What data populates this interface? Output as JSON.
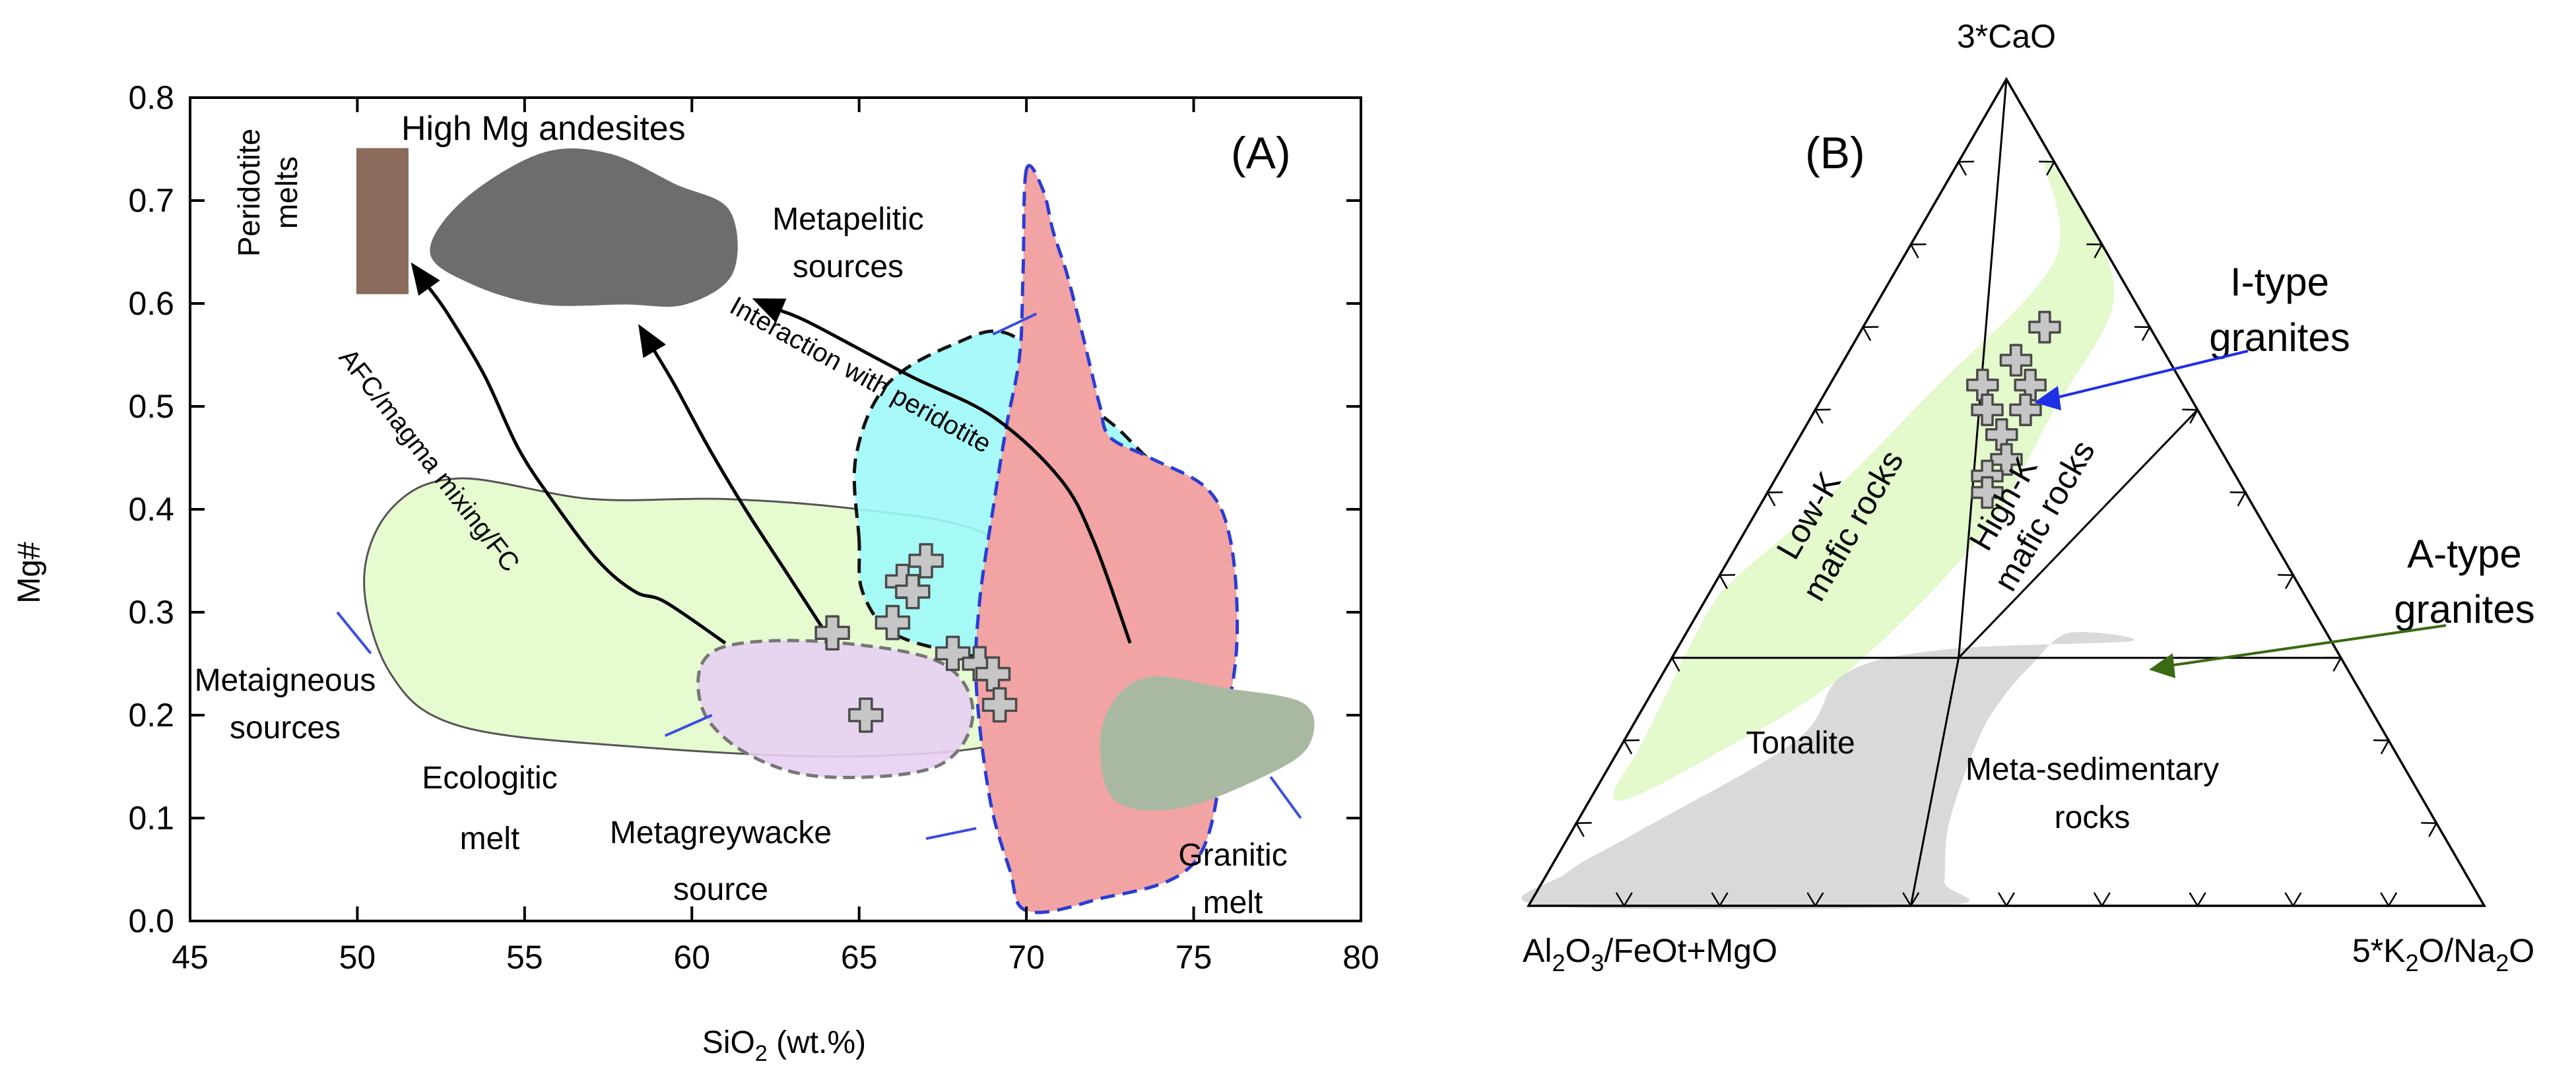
{
  "chart_data": [
    {
      "type": "scatter",
      "panel_label": "(A)",
      "xlabel": "SiO2 (wt.%)",
      "xlabel_parts": {
        "main": "SiO",
        "sub": "2",
        "rest": " (wt.%)"
      },
      "ylabel": "Mg#",
      "xlim": [
        45,
        80
      ],
      "ylim": [
        0.0,
        0.8
      ],
      "x_ticks": [
        "45",
        "50",
        "55",
        "60",
        "65",
        "70",
        "75",
        "80"
      ],
      "y_ticks": [
        "0.0",
        "0.1",
        "0.2",
        "0.3",
        "0.4",
        "0.5",
        "0.6",
        "0.7",
        "0.8"
      ],
      "samples": [
        {
          "x": 64.2,
          "y": 0.28
        },
        {
          "x": 65.2,
          "y": 0.2
        },
        {
          "x": 66.0,
          "y": 0.29
        },
        {
          "x": 66.3,
          "y": 0.33
        },
        {
          "x": 66.6,
          "y": 0.32
        },
        {
          "x": 67.0,
          "y": 0.35
        },
        {
          "x": 67.8,
          "y": 0.26
        },
        {
          "x": 68.6,
          "y": 0.25
        },
        {
          "x": 69.0,
          "y": 0.24
        },
        {
          "x": 69.2,
          "y": 0.21
        }
      ],
      "fields": [
        {
          "name": "metaigneous",
          "fill": "#e6fbd0",
          "stroke": "#555555",
          "dash": "none",
          "points": [
            [
              50.2,
              0.33
            ],
            [
              51.0,
              0.4
            ],
            [
              53.0,
              0.43
            ],
            [
              57.0,
              0.41
            ],
            [
              61.0,
              0.41
            ],
            [
              65.0,
              0.4
            ],
            [
              68.5,
              0.38
            ],
            [
              70.5,
              0.33
            ],
            [
              71.5,
              0.25
            ],
            [
              70.0,
              0.18
            ],
            [
              65.0,
              0.16
            ],
            [
              58.0,
              0.17
            ],
            [
              53.0,
              0.19
            ],
            [
              51.0,
              0.24
            ]
          ]
        },
        {
          "name": "metapelitic",
          "fill": "#9ff9fa",
          "stroke": "#111111",
          "dash": "22,12",
          "points": [
            [
              65.0,
              0.37
            ],
            [
              64.9,
              0.45
            ],
            [
              65.8,
              0.52
            ],
            [
              67.8,
              0.56
            ],
            [
              69.5,
              0.57
            ],
            [
              71.5,
              0.51
            ],
            [
              73.0,
              0.47
            ],
            [
              74.4,
              0.41
            ],
            [
              74.1,
              0.33
            ],
            [
              72.5,
              0.26
            ],
            [
              71.0,
              0.24
            ],
            [
              70.0,
              0.25
            ],
            [
              68.0,
              0.26
            ],
            [
              66.0,
              0.28
            ],
            [
              65.1,
              0.32
            ]
          ]
        },
        {
          "name": "metagreywacke",
          "fill": "#e7d0f2",
          "stroke": "#777777",
          "dash": "18,10",
          "points": [
            [
              60.3,
              0.25
            ],
            [
              61.5,
              0.27
            ],
            [
              64.5,
              0.27
            ],
            [
              67.5,
              0.25
            ],
            [
              68.4,
              0.2
            ],
            [
              67.3,
              0.15
            ],
            [
              64.0,
              0.14
            ],
            [
              61.8,
              0.16
            ],
            [
              60.4,
              0.2
            ]
          ]
        },
        {
          "name": "granitic-source",
          "fill": "#f2a3a3",
          "stroke": "#2a3cd6",
          "dash": "22,12",
          "points": [
            [
              70.0,
              0.73
            ],
            [
              70.5,
              0.71
            ],
            [
              70.8,
              0.67
            ],
            [
              71.2,
              0.63
            ],
            [
              71.6,
              0.58
            ],
            [
              71.9,
              0.54
            ],
            [
              72.2,
              0.5
            ],
            [
              72.5,
              0.47
            ],
            [
              73.7,
              0.45
            ],
            [
              75.4,
              0.42
            ],
            [
              76.1,
              0.37
            ],
            [
              76.3,
              0.28
            ],
            [
              76.0,
              0.2
            ],
            [
              75.1,
              0.06
            ],
            [
              72.0,
              0.02
            ],
            [
              70.0,
              0.01
            ],
            [
              69.5,
              0.05
            ],
            [
              68.9,
              0.12
            ],
            [
              68.5,
              0.23
            ],
            [
              68.6,
              0.31
            ],
            [
              69.0,
              0.4
            ],
            [
              69.4,
              0.48
            ],
            [
              69.8,
              0.55
            ],
            [
              69.9,
              0.63
            ]
          ]
        },
        {
          "name": "granitic-melt",
          "fill": "#a9b9a1",
          "stroke": "#a9b9a1",
          "dash": "none",
          "points": [
            [
              72.3,
              0.19
            ],
            [
              73.5,
              0.235
            ],
            [
              76.0,
              0.225
            ],
            [
              78.3,
              0.21
            ],
            [
              78.4,
              0.17
            ],
            [
              77.0,
              0.14
            ],
            [
              74.5,
              0.11
            ],
            [
              72.6,
              0.12
            ]
          ]
        },
        {
          "name": "high-mg-andesites",
          "fill": "#6d6d6d",
          "stroke": "#6d6d6d",
          "dash": "none",
          "points": [
            [
              52.2,
              0.65
            ],
            [
              53.2,
              0.7
            ],
            [
              55.5,
              0.745
            ],
            [
              57.5,
              0.745
            ],
            [
              59.5,
              0.715
            ],
            [
              61.1,
              0.69
            ],
            [
              61.2,
              0.63
            ],
            [
              59.8,
              0.6
            ],
            [
              58.0,
              0.6
            ],
            [
              55.5,
              0.6
            ],
            [
              53.4,
              0.62
            ]
          ]
        },
        {
          "name": "peridotite-melts",
          "fill": "#8a6b5c",
          "stroke": "#8a6b5c",
          "dash": "none",
          "points": [
            [
              50.0,
              0.75
            ],
            [
              51.5,
              0.75
            ],
            [
              51.5,
              0.61
            ],
            [
              50.0,
              0.61
            ]
          ]
        }
      ],
      "arrows": [
        {
          "name": "arrow-afc",
          "points": [
            [
              61.0,
              0.27
            ],
            [
              59.2,
              0.31
            ],
            [
              58.3,
              0.32
            ],
            [
              57.2,
              0.35
            ],
            [
              55.8,
              0.41
            ],
            [
              54.8,
              0.46
            ],
            [
              53.8,
              0.53
            ],
            [
              52.7,
              0.59
            ],
            [
              51.6,
              0.64
            ]
          ]
        },
        {
          "name": "arrow-metaigneous",
          "points": [
            [
              64.0,
              0.28
            ],
            [
              62.8,
              0.34
            ],
            [
              61.6,
              0.4
            ],
            [
              60.5,
              0.46
            ],
            [
              59.5,
              0.52
            ],
            [
              58.4,
              0.58
            ]
          ]
        },
        {
          "name": "arrow-peridotite",
          "points": [
            [
              73.1,
              0.27
            ],
            [
              72.0,
              0.37
            ],
            [
              71.0,
              0.43
            ],
            [
              69.0,
              0.49
            ],
            [
              66.5,
              0.53
            ],
            [
              63.6,
              0.58
            ],
            [
              61.8,
              0.605
            ]
          ]
        }
      ],
      "callouts": [
        {
          "name": "callout-metaigneous",
          "points": [
            [
              50.4,
              0.26
            ],
            [
              49.4,
              0.3
            ]
          ]
        },
        {
          "name": "callout-ecologitic",
          "points": [
            [
              59.2,
              0.18
            ],
            [
              60.6,
              0.2
            ]
          ]
        },
        {
          "name": "callout-metagreywacke",
          "points": [
            [
              67.0,
              0.08
            ],
            [
              68.5,
              0.09
            ]
          ]
        },
        {
          "name": "callout-metapelitic",
          "points": [
            [
              69.0,
              0.57
            ],
            [
              70.3,
              0.59
            ]
          ]
        },
        {
          "name": "callout-granitic-melt",
          "points": [
            [
              77.3,
              0.14
            ],
            [
              78.2,
              0.1
            ]
          ]
        }
      ],
      "labels": {
        "peridotite_line1": "Peridotite",
        "peridotite_line2": "melts",
        "high_mg": "High Mg andesites",
        "metapelitic_line1": "Metapelitic",
        "metapelitic_line2": "sources",
        "interaction": "Interaction with peridotite",
        "afc": "AFC/magma mixing/FC",
        "metaigneous_line1": "Metaigneous",
        "metaigneous_line2": "sources",
        "ecologitic_line1": "Ecologitic",
        "ecologitic_line2": "melt",
        "metagreywacke_line1": "Metagreywacke",
        "metagreywacke_line2": "source",
        "granitic_line1": "Granitic",
        "granitic_line2": "melt"
      }
    },
    {
      "type": "ternary",
      "panel_label": "(B)",
      "apex_top": "3*CaO",
      "apex_left": "Al2O3/FeOt+MgO",
      "apex_left_parts": [
        "Al",
        "2",
        "O",
        "3",
        "/FeOt+MgO"
      ],
      "apex_right": "5*K2O/Na2O",
      "apex_right_parts": [
        "5*K",
        "2",
        "O/Na",
        "2",
        "O"
      ],
      "samples": [
        {
          "a": 0.7,
          "b": 0.19,
          "c": 0.11
        },
        {
          "a": 0.66,
          "b": 0.18,
          "c": 0.16
        },
        {
          "a": 0.63,
          "b": 0.16,
          "c": 0.21
        },
        {
          "a": 0.63,
          "b": 0.21,
          "c": 0.16
        },
        {
          "a": 0.6,
          "b": 0.18,
          "c": 0.22
        },
        {
          "a": 0.6,
          "b": 0.22,
          "c": 0.18
        },
        {
          "a": 0.57,
          "b": 0.21,
          "c": 0.22
        },
        {
          "a": 0.54,
          "b": 0.23,
          "c": 0.23
        },
        {
          "a": 0.52,
          "b": 0.22,
          "c": 0.26
        },
        {
          "a": 0.5,
          "b": 0.23,
          "c": 0.27
        }
      ],
      "fields": [
        {
          "name": "i-type-field",
          "fill": "#e4f9cc",
          "points": [
            [
              0.9,
              0.09,
              0.01
            ],
            [
              0.78,
              0.16,
              0.06
            ],
            [
              0.62,
              0.11,
              0.27
            ],
            [
              0.48,
              0.06,
              0.46
            ],
            [
              0.4,
              0.02,
              0.58
            ],
            [
              0.35,
              0.01,
              0.64
            ],
            [
              0.2,
              0.02,
              0.78
            ],
            [
              0.14,
              0.02,
              0.84
            ],
            [
              0.13,
              0.04,
              0.83
            ],
            [
              0.18,
              0.1,
              0.72
            ],
            [
              0.28,
              0.19,
              0.53
            ],
            [
              0.45,
              0.25,
              0.3
            ],
            [
              0.6,
              0.25,
              0.15
            ],
            [
              0.72,
              0.25,
              0.03
            ],
            [
              0.8,
              0.2,
              0.0
            ],
            [
              0.86,
              0.14,
              0.0
            ]
          ]
        },
        {
          "name": "a-type-field",
          "fill": "#d9d9d9",
          "points": [
            [
              0.32,
              0.47,
              0.21
            ],
            [
              0.33,
              0.4,
              0.27
            ],
            [
              0.29,
              0.38,
              0.33
            ],
            [
              0.25,
              0.37,
              0.38
            ],
            [
              0.2,
              0.37,
              0.43
            ],
            [
              0.1,
              0.39,
              0.51
            ],
            [
              0.03,
              0.42,
              0.55
            ],
            [
              0.0,
              0.43,
              0.57
            ],
            [
              0.0,
              0.02,
              0.98
            ],
            [
              0.04,
              0.02,
              0.94
            ],
            [
              0.09,
              0.07,
              0.84
            ],
            [
              0.2,
              0.18,
              0.62
            ],
            [
              0.28,
              0.19,
              0.53
            ],
            [
              0.31,
              0.28,
              0.41
            ]
          ]
        }
      ],
      "lines": [
        {
          "name": "divider-horizontal",
          "from": [
            0.3,
            0.0,
            0.7
          ],
          "to": [
            0.3,
            0.7,
            0.0
          ]
        },
        {
          "name": "divider-lowk-highk",
          "from": [
            1.0,
            0.0,
            0.0
          ],
          "to": [
            0.3,
            0.3,
            0.4
          ]
        },
        {
          "name": "divider-highk-right",
          "from": [
            0.6,
            0.4,
            0.0
          ],
          "to": [
            0.3,
            0.3,
            0.4
          ]
        },
        {
          "name": "divider-metased",
          "from": [
            0.3,
            0.3,
            0.4
          ],
          "to": [
            0.0,
            0.4,
            0.6
          ]
        }
      ],
      "labels": {
        "tonalite": "Tonalite",
        "metased_line1": "Meta-sedimentary",
        "metased_line2": "rocks",
        "lowk_line1": "Low-K",
        "lowk_line2": "mafic rocks",
        "highk_line1": "High-K",
        "highk_line2": "mafic rocks",
        "itype_line1": "I-type",
        "itype_line2": "granites",
        "atype_line1": "A-type",
        "atype_line2": "granites"
      },
      "colors": {
        "itype": "#1f2fe6",
        "atype": "#3a6b12"
      }
    }
  ]
}
